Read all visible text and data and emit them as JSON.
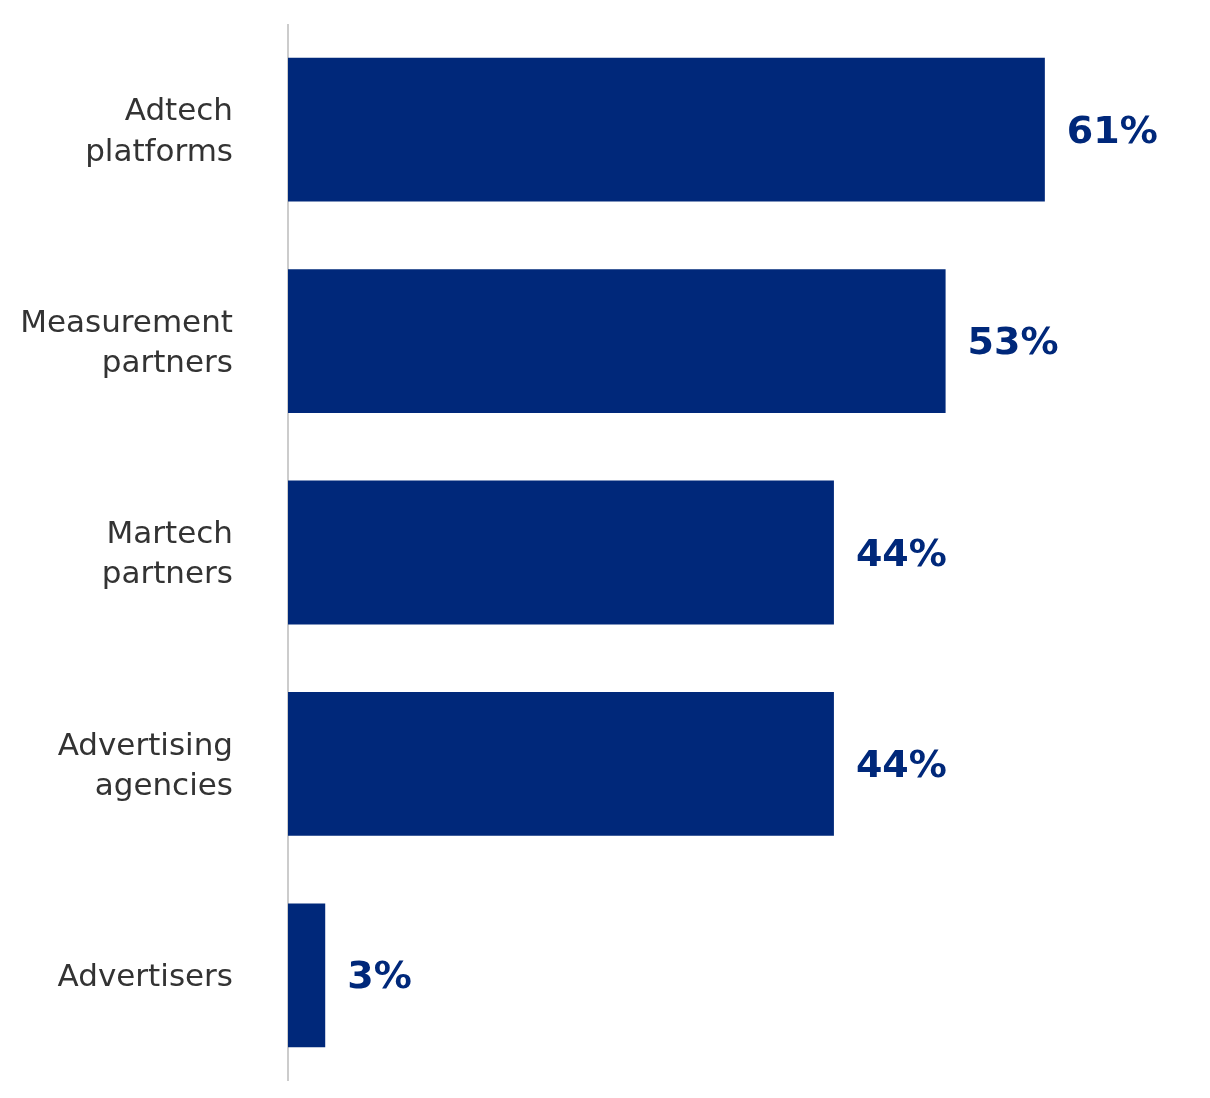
{
  "chart_data": {
    "type": "bar",
    "orientation": "horizontal",
    "categories": [
      "Adtech platforms",
      "Measurement partners",
      "Martech partners",
      "Advertising agencies",
      "Advertisers"
    ],
    "values": [
      61,
      53,
      44,
      44,
      3
    ],
    "value_labels": [
      "61%",
      "53%",
      "44%",
      "44%",
      "3%"
    ],
    "color": "#00287a",
    "grid": false,
    "tick_labels": "y"
  }
}
